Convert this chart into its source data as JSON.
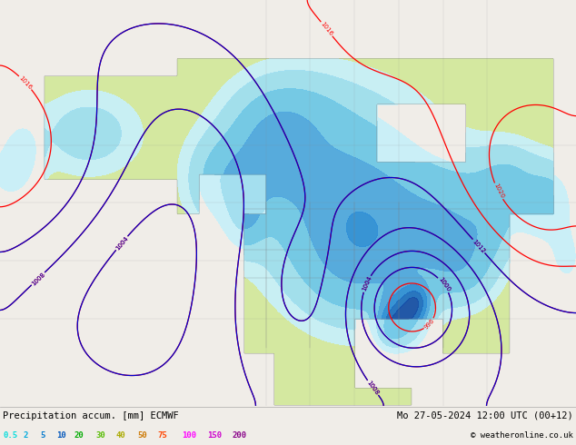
{
  "title_left": "Precipitation accum. [mm] ECMWF",
  "title_right": "Mo 27-05-2024 12:00 UTC (00+12)",
  "copyright": "© weatheronline.co.uk",
  "legend_values": [
    "0.5",
    "2",
    "5",
    "10",
    "20",
    "30",
    "40",
    "50",
    "75",
    "100",
    "150",
    "200"
  ],
  "legend_colors": [
    "#00ffff",
    "#00ccff",
    "#0099ff",
    "#0066ff",
    "#00cc00",
    "#66cc00",
    "#cccc00",
    "#cc6600",
    "#ff6600",
    "#ff00ff",
    "#cc00cc",
    "#660066"
  ],
  "bg_color": "#f0ede8",
  "border_color": "#8888aa",
  "bottom_bar_color": "#d8d8d8",
  "figsize": [
    6.34,
    4.9
  ],
  "dpi": 100,
  "ocean_color": "#e8e8e8",
  "land_color": "#d4e8a0",
  "precip_light_cyan": "#c8f0f8",
  "precip_cyan": "#90d8f0",
  "precip_blue": "#60b8e8",
  "precip_dark_blue": "#2080d0",
  "precip_deep_blue": "#0040a0"
}
